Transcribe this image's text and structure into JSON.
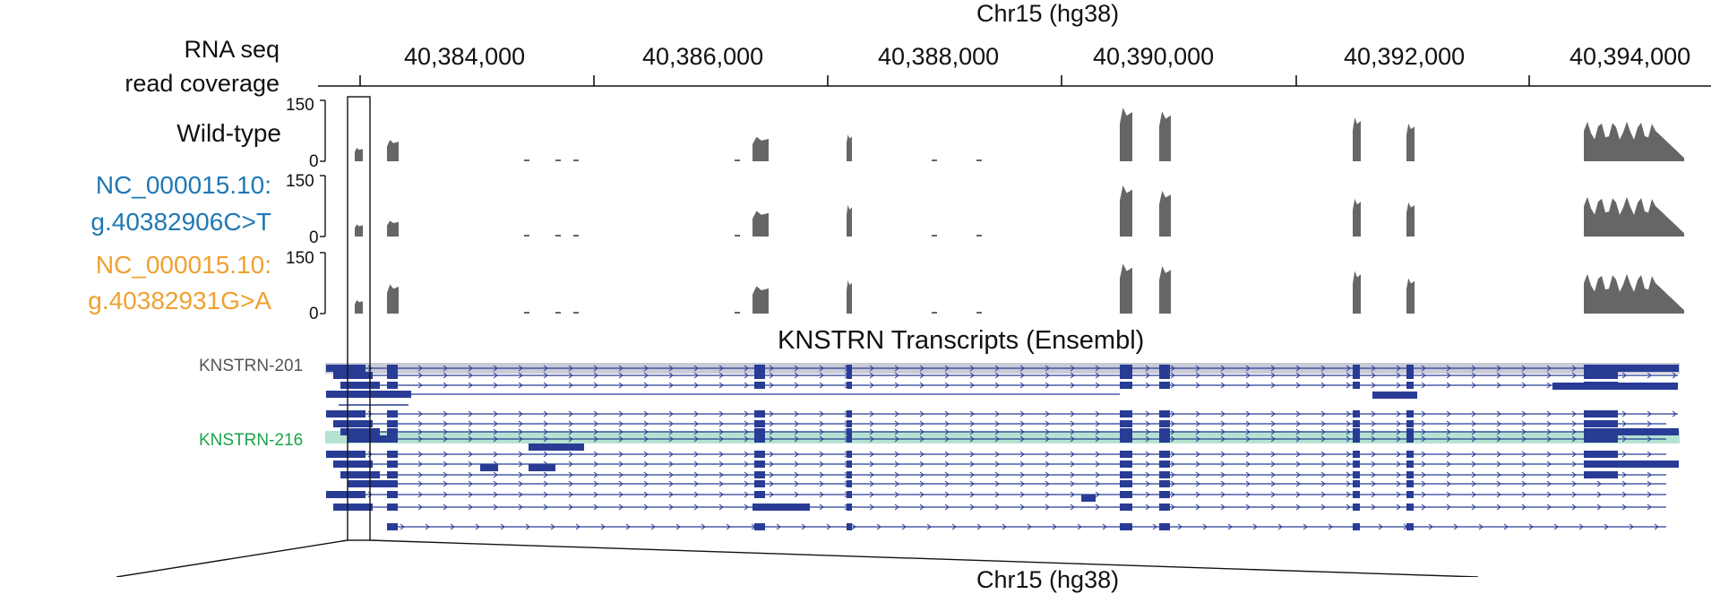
{
  "figure": {
    "chrom_title": "Chr15 (hg38)",
    "chrom_title_bottom": "Chr15 (hg38)",
    "coverage_label_line1": "RNA seq",
    "coverage_label_line2": "read coverage",
    "transcripts_title": "KNSTRN Transcripts (Ensembl)"
  },
  "axis": {
    "ticks": [
      "40,384,000",
      "40,386,000",
      "40,388,000",
      "40,390,000",
      "40,392,000",
      "40,394,000"
    ],
    "tick_values": [
      40384000,
      40386000,
      40388000,
      40390000,
      40392000,
      40394000
    ],
    "range": [
      40382700,
      40394550
    ]
  },
  "tracks": [
    {
      "name_line1": "Wild-type",
      "name_line2": "",
      "color": "#111111",
      "y_max": "150",
      "y_min": "0"
    },
    {
      "name_line1": "NC_000015.10:",
      "name_line2": "g.40382906C>T",
      "color": "#1f78b4",
      "y_max": "150",
      "y_min": "0"
    },
    {
      "name_line1": "NC_000015.10:",
      "name_line2": "g.40382931G>A",
      "color": "#f0a030",
      "y_max": "150",
      "y_min": "0"
    }
  ],
  "transcripts": {
    "highlighted": [
      {
        "label": "KNSTRN-201",
        "color": "#555555",
        "band_color": "#c9cad6"
      },
      {
        "label": "KNSTRN-216",
        "color": "#1aa34a",
        "band_color": "#b5e3d3"
      }
    ]
  },
  "colors": {
    "coverage": "#666666",
    "exon": "#283c96",
    "intron": "#283c96"
  }
}
